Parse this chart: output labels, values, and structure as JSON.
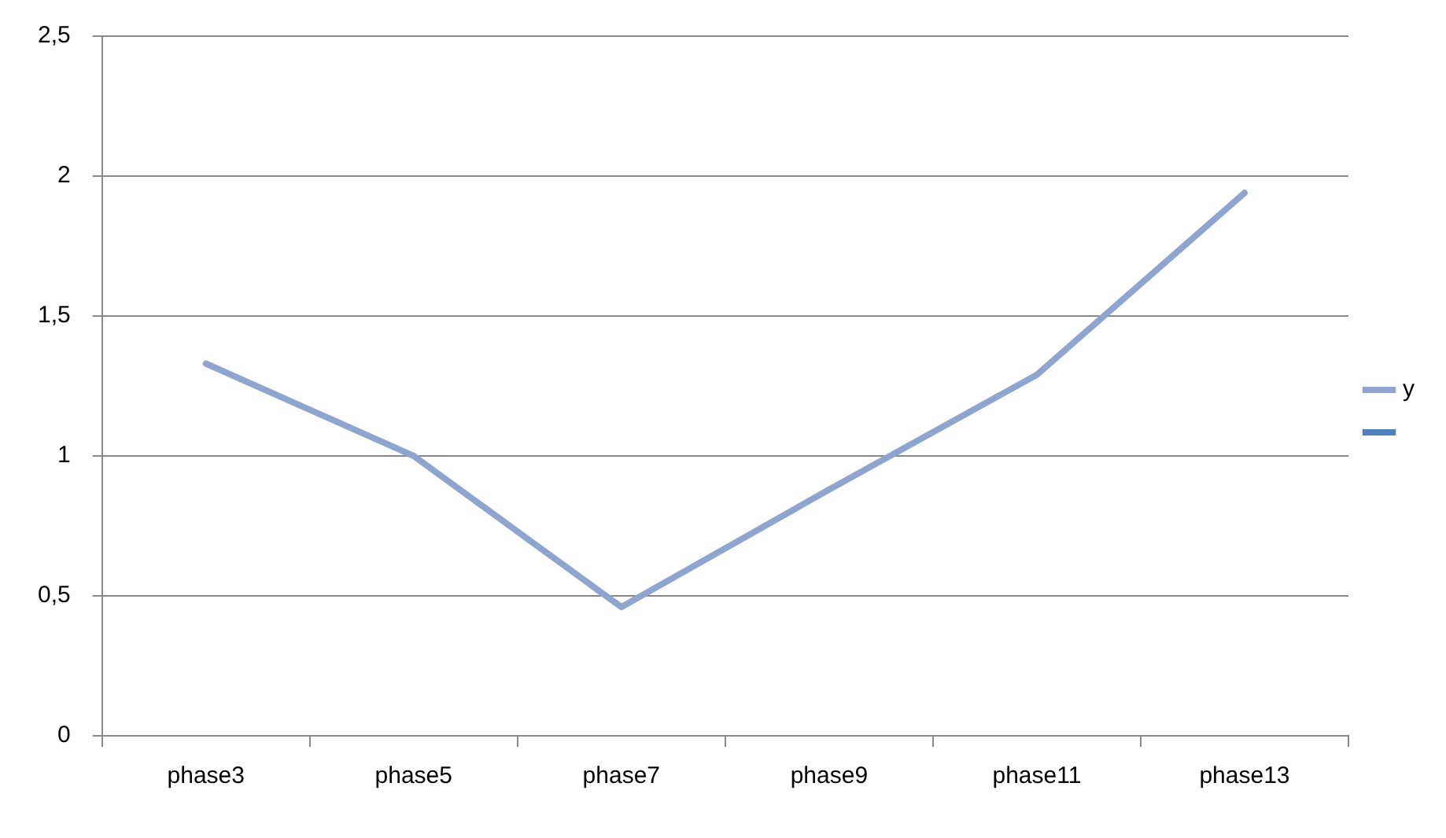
{
  "chart_data": {
    "type": "line",
    "categories": [
      "phase3",
      "phase5",
      "phase7",
      "phase9",
      "phase11",
      "phase13"
    ],
    "series": [
      {
        "name": "y",
        "color": "#8fa5d0",
        "values": [
          1.33,
          1.0,
          0.46,
          0.88,
          1.29,
          1.94
        ]
      },
      {
        "color": "#4f81bd",
        "values": [
          null,
          null,
          null,
          null,
          null,
          null
        ]
      }
    ],
    "ylim": [
      0,
      2.5
    ],
    "yticks": [
      {
        "value": 0,
        "label": "0"
      },
      {
        "value": 0.5,
        "label": "0,5"
      },
      {
        "value": 1,
        "label": "1"
      },
      {
        "value": 1.5,
        "label": "1,5"
      },
      {
        "value": 2,
        "label": "2"
      },
      {
        "value": 2.5,
        "label": "2,5"
      }
    ],
    "grid": "y",
    "legend": "right",
    "marker": "none",
    "line_style": "solid"
  }
}
